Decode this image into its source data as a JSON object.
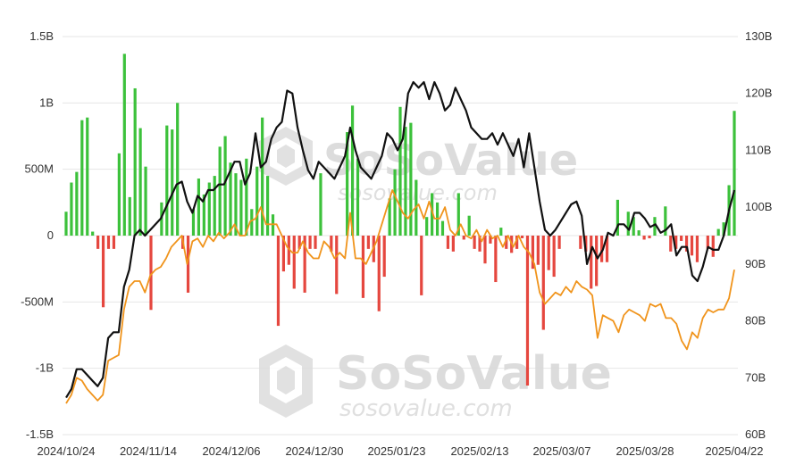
{
  "chart_data": {
    "type": "bar",
    "left_axis": {
      "ticks": [
        "1.5B",
        "1B",
        "500M",
        "0",
        "-500M",
        "-1B",
        "-1.5B"
      ],
      "tick_values": [
        1500000000,
        1000000000,
        500000000,
        0,
        -500000000,
        -1000000000,
        -1500000000
      ],
      "range": [
        -1500000000,
        1500000000
      ]
    },
    "right_axis": {
      "ticks": [
        "130B",
        "120B",
        "110B",
        "100B",
        "90B",
        "80B",
        "70B",
        "60B"
      ],
      "tick_values": [
        130,
        120,
        110,
        100,
        90,
        80,
        70,
        60
      ],
      "range": [
        60,
        130
      ]
    },
    "x_ticks": [
      "2024/10/24",
      "2024/11/14",
      "2024/12/06",
      "2024/12/30",
      "2025/01/23",
      "2025/02/13",
      "2025/03/07",
      "2025/03/28",
      "2025/04/22"
    ],
    "grid": true,
    "colors": {
      "inflow": "#3cc13b",
      "outflow": "#e5473f",
      "line_black": "#111111",
      "line_orange": "#f0941c"
    },
    "series": [
      {
        "kind": "bar",
        "values_m": [
          180,
          400,
          480,
          870,
          890,
          30,
          -100,
          -540,
          -100,
          -100,
          620,
          1370,
          290,
          1110,
          810,
          520,
          -560,
          0,
          250,
          830,
          800,
          1000,
          -100,
          -430,
          200,
          430,
          310,
          400,
          450,
          670,
          750,
          550,
          470,
          420,
          580,
          200,
          520,
          890,
          450,
          160,
          -680,
          -270,
          -220,
          -400,
          -100,
          -430,
          -100,
          -100,
          470,
          0,
          -120,
          -440,
          0,
          780,
          980,
          580,
          -470,
          -100,
          -200,
          -570,
          -310,
          280,
          500,
          970,
          820,
          850,
          420,
          -450,
          140,
          320,
          250,
          110,
          -100,
          -120,
          320,
          -30,
          150,
          -100,
          -120,
          -210,
          -60,
          -350,
          60,
          -100,
          -130,
          -100,
          -20,
          -1130,
          -250,
          -220,
          -710,
          -260,
          -310,
          -100,
          0,
          0,
          0,
          -100,
          -120,
          -400,
          -380,
          -200,
          -200,
          0,
          270,
          0,
          180,
          140,
          40,
          -30,
          -20,
          140,
          0,
          220,
          -120,
          -100,
          -40,
          -120,
          -150,
          -200,
          0,
          -100,
          -160,
          50,
          100,
          380,
          940
        ],
        "unit": "USD millions (daily net flow)"
      },
      {
        "kind": "line",
        "color": "black",
        "values_b": [
          66.5,
          68,
          71.5,
          71.5,
          70.5,
          69.5,
          68.5,
          70,
          77,
          78,
          78,
          86,
          89,
          95,
          96,
          95,
          96,
          97,
          98,
          100,
          102,
          104,
          104.5,
          101,
          99,
          102,
          101,
          103,
          103,
          104,
          104,
          106,
          108,
          108,
          104,
          106,
          113,
          107,
          108,
          112,
          114,
          115,
          120.5,
          120,
          114,
          110,
          106.5,
          105,
          108,
          107,
          106,
          105,
          107,
          109,
          114,
          110,
          107,
          106,
          105,
          107,
          109,
          113,
          112,
          110,
          112,
          120,
          122,
          121,
          122,
          119,
          122,
          120,
          117,
          118,
          121,
          119,
          117,
          114,
          113,
          112,
          112,
          113,
          111,
          113,
          111,
          109,
          112,
          107,
          113,
          107,
          101,
          96,
          95,
          96,
          97.5,
          99,
          100.5,
          101,
          98.5,
          90,
          93,
          91,
          92.5,
          95.5,
          95,
          97,
          97,
          96,
          99,
          99,
          98,
          96.5,
          97,
          95.5,
          96,
          97,
          91.5,
          93,
          93,
          88,
          87,
          89.5,
          93,
          92.5,
          92.5,
          95,
          99.5,
          103
        ]
      },
      {
        "kind": "line",
        "color": "orange",
        "values_b": [
          65.5,
          67,
          70,
          69.5,
          68,
          67,
          66,
          67,
          73,
          73.5,
          74,
          82,
          86,
          87,
          87,
          85,
          88,
          89,
          89.5,
          91,
          93,
          94,
          95,
          90,
          94,
          94.5,
          93,
          95,
          94,
          95.5,
          94.5,
          95.5,
          97,
          95,
          95,
          97.5,
          98,
          100,
          97,
          97,
          97,
          95,
          93,
          92,
          92,
          94,
          92,
          91,
          91,
          94,
          93,
          91,
          92,
          91,
          99,
          91,
          91,
          90,
          92,
          94,
          97,
          100,
          103,
          101,
          99,
          98,
          99.5,
          100.5,
          98,
          101,
          98,
          98,
          100,
          96,
          95,
          97,
          95,
          94.5,
          96,
          94,
          96,
          94.5,
          95,
          93,
          95,
          93,
          95,
          93,
          92,
          90,
          85,
          83,
          84,
          85,
          84.5,
          86,
          85,
          87,
          86,
          85.5,
          84.5,
          77,
          81,
          80.5,
          80,
          78,
          81,
          82,
          81.5,
          81,
          80,
          83,
          82.5,
          83,
          80.5,
          80.5,
          79.5,
          76.5,
          75,
          78,
          77,
          80.5,
          82,
          81.5,
          82,
          82,
          84,
          89
        ]
      }
    ]
  },
  "watermark": {
    "brand": "SoSoValue",
    "url": "sosovalue.com"
  }
}
